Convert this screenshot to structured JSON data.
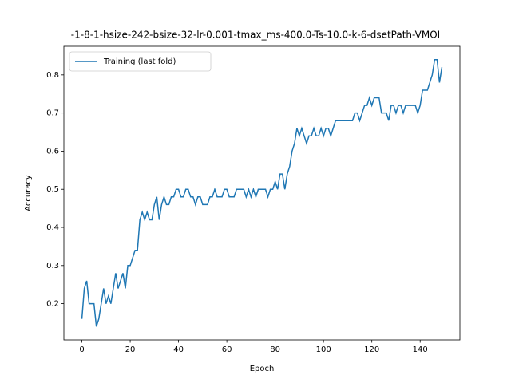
{
  "chart_data": {
    "type": "line",
    "title": "-1-8-1-hsize-242-bsize-32-lr-0.001-tmax_ms-400.0-Ts-10.0-k-6-dsetPath-VMOI",
    "x_label": "Epoch",
    "y_label": "Accuracy",
    "legend": "upper left",
    "x": [
      0,
      1,
      2,
      3,
      4,
      5,
      6,
      7,
      8,
      9,
      10,
      11,
      12,
      13,
      14,
      15,
      16,
      17,
      18,
      19,
      20,
      21,
      22,
      23,
      24,
      25,
      26,
      27,
      28,
      29,
      30,
      31,
      32,
      33,
      34,
      35,
      36,
      37,
      38,
      39,
      40,
      41,
      42,
      43,
      44,
      45,
      46,
      47,
      48,
      49,
      50,
      51,
      52,
      53,
      54,
      55,
      56,
      57,
      58,
      59,
      60,
      61,
      62,
      63,
      64,
      65,
      66,
      67,
      68,
      69,
      70,
      71,
      72,
      73,
      74,
      75,
      76,
      77,
      78,
      79,
      80,
      81,
      82,
      83,
      84,
      85,
      86,
      87,
      88,
      89,
      90,
      91,
      92,
      93,
      94,
      95,
      96,
      97,
      98,
      99,
      100,
      101,
      102,
      103,
      104,
      105,
      106,
      107,
      108,
      109,
      110,
      111,
      112,
      113,
      114,
      115,
      116,
      117,
      118,
      119,
      120,
      121,
      122,
      123,
      124,
      125,
      126,
      127,
      128,
      129,
      130,
      131,
      132,
      133,
      134,
      135,
      136,
      137,
      138,
      139,
      140,
      141,
      142,
      143,
      144,
      145,
      146,
      147,
      148,
      149
    ],
    "series": [
      {
        "name": "Training (last fold)",
        "color": "#1f77b4",
        "values": [
          0.16,
          0.24,
          0.26,
          0.2,
          0.2,
          0.2,
          0.14,
          0.16,
          0.2,
          0.24,
          0.2,
          0.22,
          0.2,
          0.24,
          0.28,
          0.24,
          0.26,
          0.28,
          0.24,
          0.3,
          0.3,
          0.32,
          0.34,
          0.34,
          0.42,
          0.44,
          0.42,
          0.44,
          0.42,
          0.42,
          0.46,
          0.48,
          0.42,
          0.46,
          0.48,
          0.46,
          0.46,
          0.48,
          0.48,
          0.5,
          0.5,
          0.48,
          0.48,
          0.5,
          0.5,
          0.48,
          0.48,
          0.46,
          0.48,
          0.48,
          0.46,
          0.46,
          0.46,
          0.48,
          0.48,
          0.5,
          0.48,
          0.48,
          0.48,
          0.5,
          0.5,
          0.48,
          0.48,
          0.48,
          0.5,
          0.5,
          0.5,
          0.5,
          0.48,
          0.5,
          0.48,
          0.5,
          0.48,
          0.5,
          0.5,
          0.5,
          0.5,
          0.48,
          0.5,
          0.5,
          0.52,
          0.5,
          0.54,
          0.54,
          0.5,
          0.54,
          0.56,
          0.6,
          0.62,
          0.66,
          0.64,
          0.66,
          0.64,
          0.62,
          0.64,
          0.64,
          0.66,
          0.64,
          0.64,
          0.66,
          0.64,
          0.66,
          0.66,
          0.64,
          0.66,
          0.68,
          0.68,
          0.68,
          0.68,
          0.68,
          0.68,
          0.68,
          0.68,
          0.7,
          0.7,
          0.68,
          0.7,
          0.72,
          0.72,
          0.74,
          0.72,
          0.74,
          0.74,
          0.74,
          0.7,
          0.7,
          0.7,
          0.68,
          0.72,
          0.72,
          0.7,
          0.72,
          0.72,
          0.7,
          0.72,
          0.72,
          0.72,
          0.72,
          0.72,
          0.7,
          0.72,
          0.76,
          0.76,
          0.76,
          0.78,
          0.8,
          0.84,
          0.84,
          0.78,
          0.82
        ]
      }
    ],
    "xlim": [
      -7.45,
      156.45
    ],
    "xticks": [
      0,
      20,
      40,
      60,
      80,
      100,
      120,
      140
    ],
    "ylim": [
      0.105,
      0.875
    ],
    "yticks": [
      0.2,
      0.3,
      0.4,
      0.5,
      0.6,
      0.7,
      0.8
    ]
  }
}
